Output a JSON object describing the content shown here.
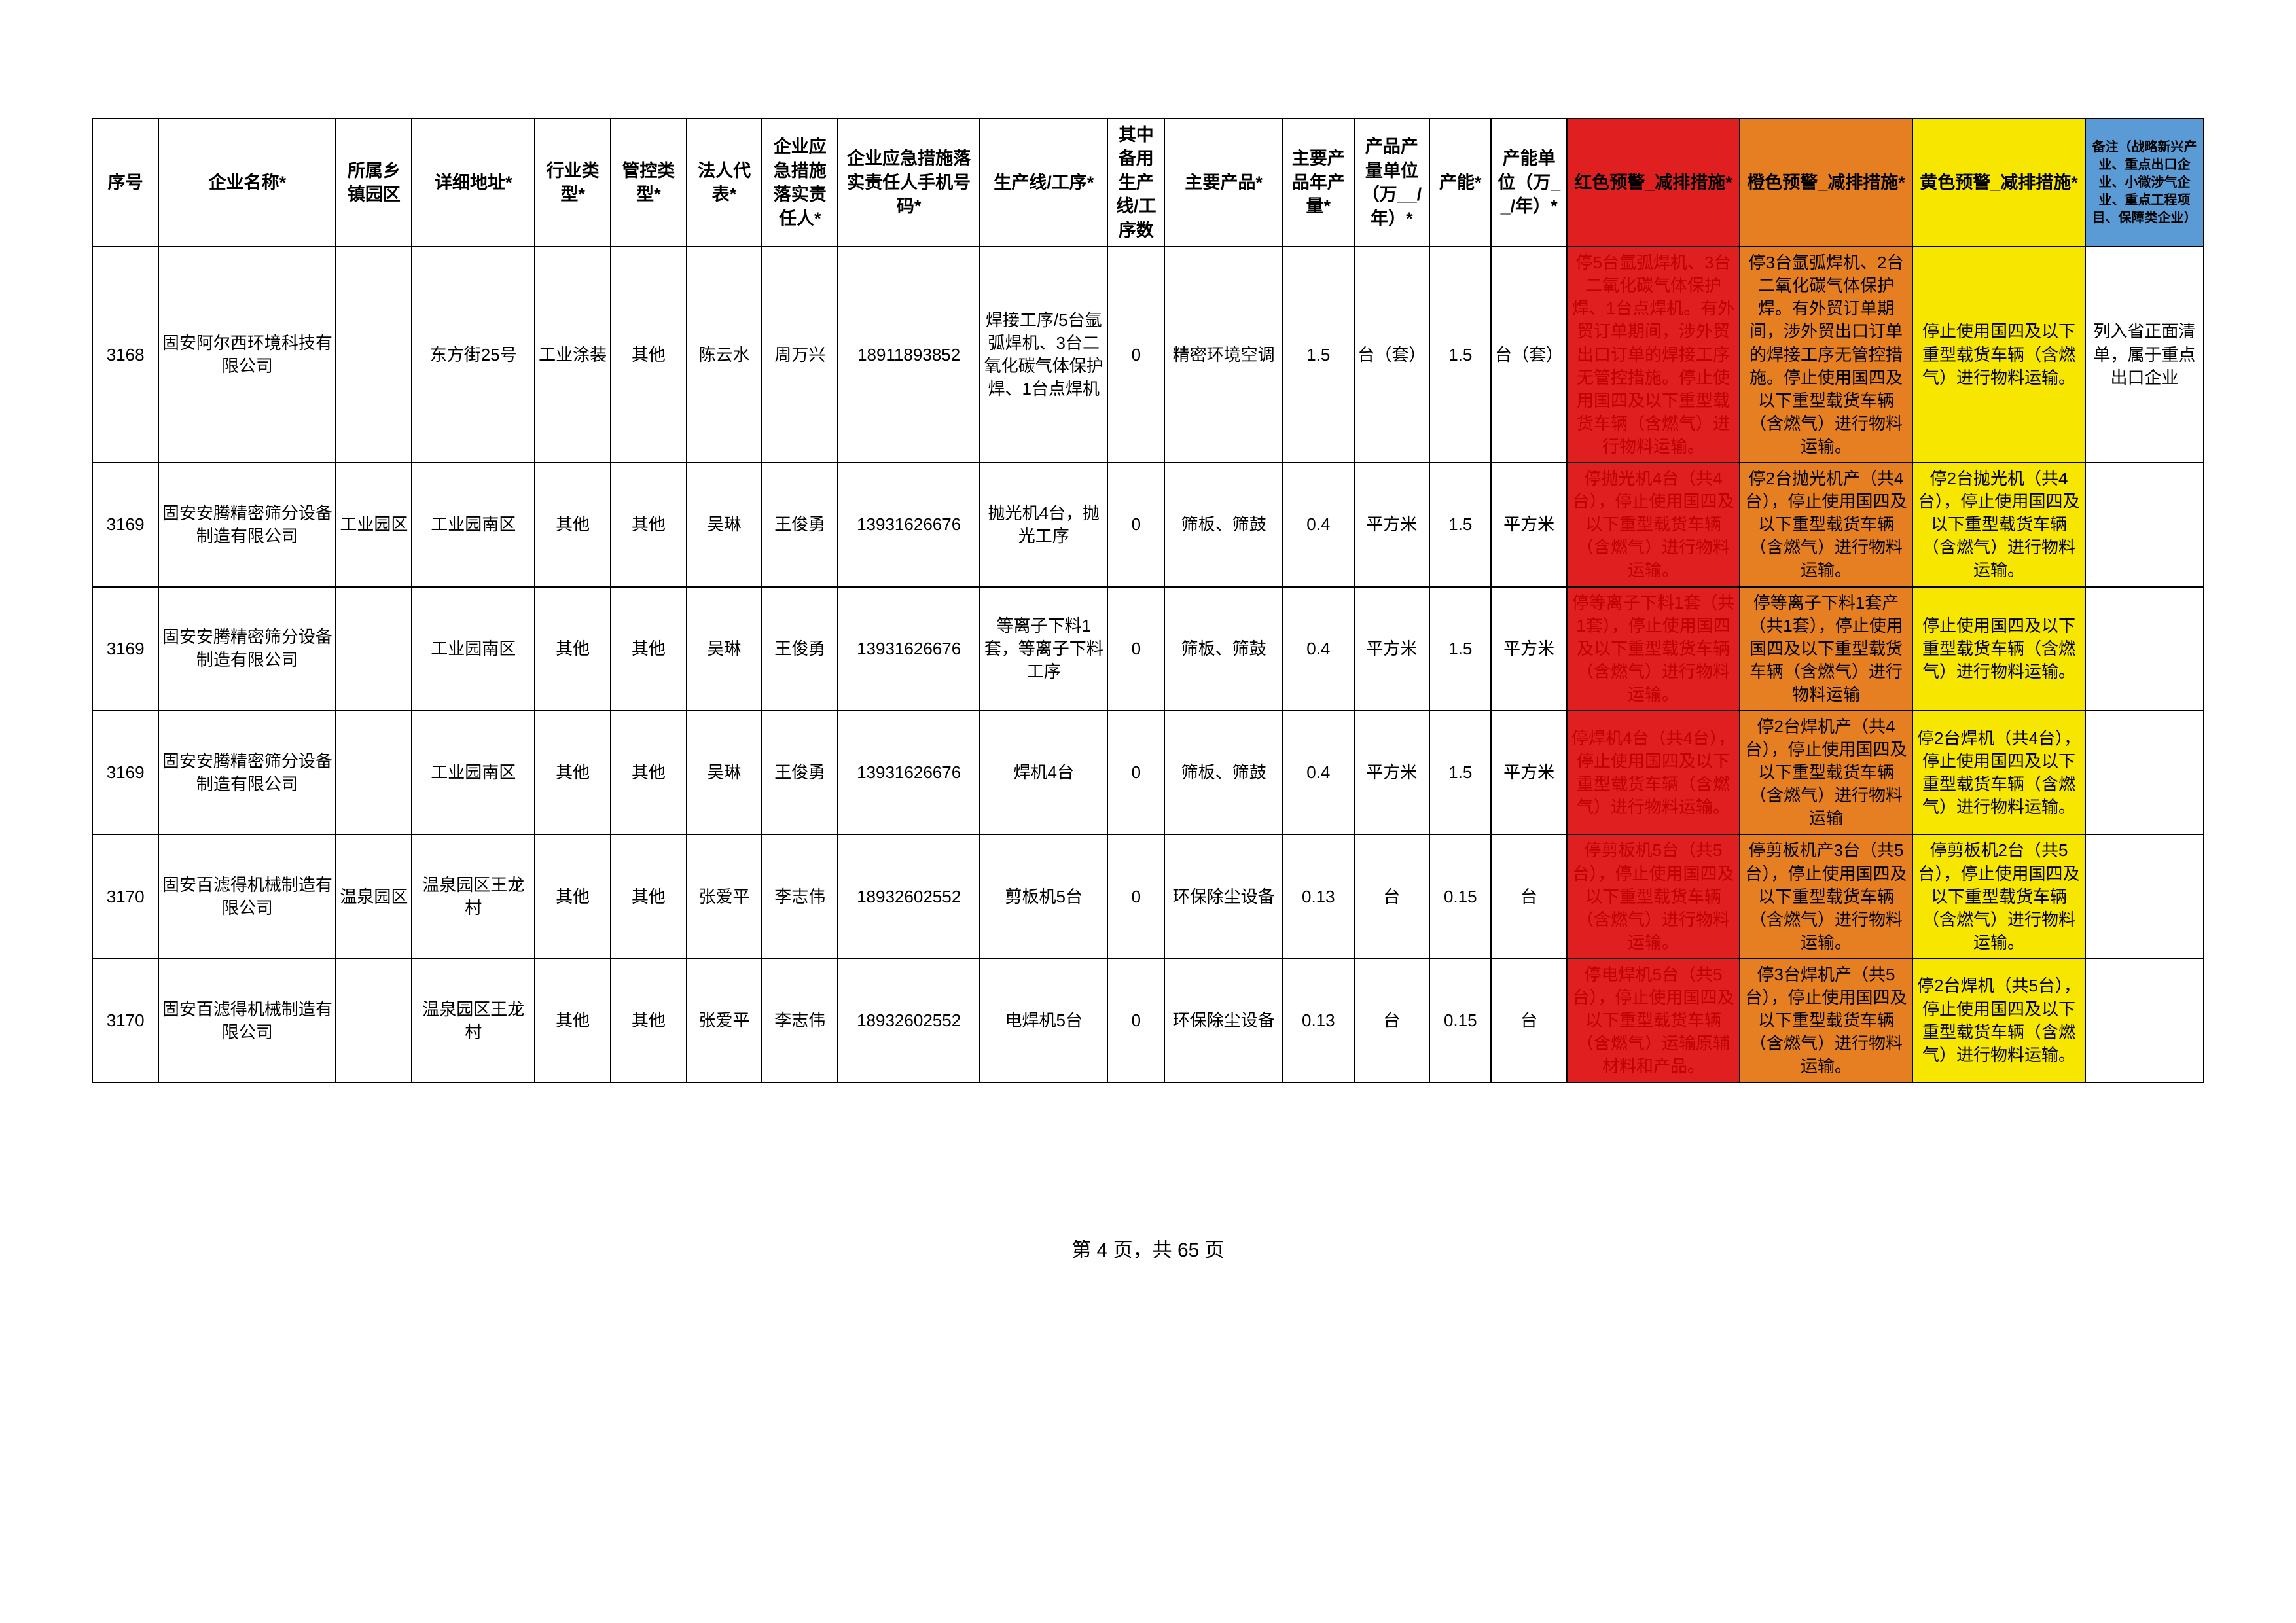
{
  "columns": [
    "序号",
    "企业名称*",
    "所属乡镇园区",
    "详细地址*",
    "行业类型*",
    "管控类型*",
    "法人代表*",
    "企业应急措施落实责任人*",
    "企业应急措施落实责任人手机号码*",
    "生产线/工序*",
    "其中备用生产线/工序数",
    "主要产品*",
    "主要产品年产量*",
    "产品产量单位（万__/年）*",
    "产能*",
    "产能单位（万__/年）*",
    "红色预警_减排措施*",
    "橙色预警_减排措施*",
    "黄色预警_减排措施*",
    "备注（战略新兴产业、重点出口企业、小微涉气企业、重点工程项目、保障类企业）"
  ],
  "header_colors": {
    "16": {
      "bg": "#e02020",
      "fg": "#000000"
    },
    "17": {
      "bg": "#e67e22",
      "fg": "#000000"
    },
    "18": {
      "bg": "#f6e600",
      "fg": "#000000"
    },
    "19": {
      "bg": "#5b9bd5",
      "fg": "#000000",
      "fs": "20px"
    }
  },
  "rows": [
    {
      "cells": [
        "3168",
        "固安阿尔西环境科技有限公司",
        "",
        "东方街25号",
        "工业涂装",
        "其他",
        "陈云水",
        "周万兴",
        "18911893852",
        "焊接工序/5台氩弧焊机、3台二氧化碳气体保护焊、1台点焊机",
        "0",
        "精密环境空调",
        "1.5",
        "台（套）",
        "1.5",
        "台（套）",
        "停5台氩弧焊机、3台二氧化碳气体保护焊、1台点焊机。有外贸订单期间，涉外贸出口订单的焊接工序无管控措施。停止使用国四及以下重型载货车辆（含燃气）进行物料运输。",
        "停3台氩弧焊机、2台二氧化碳气体保护焊。有外贸订单期间，涉外贸出口订单的焊接工序无管控措施。停止使用国四及以下重型载货车辆（含燃气）进行物料运输。",
        "停止使用国四及以下重型载货车辆（含燃气）进行物料运输。",
        "列入省正面清单，属于重点出口企业"
      ]
    },
    {
      "cells": [
        "3169",
        "固安安腾精密筛分设备制造有限公司",
        "工业园区",
        "工业园南区",
        "其他",
        "其他",
        "吴琳",
        "王俊勇",
        "13931626676",
        "抛光机4台，抛光工序",
        "0",
        "筛板、筛鼓",
        "0.4",
        "平方米",
        "1.5",
        "平方米",
        "停抛光机4台（共4台），停止使用国四及以下重型载货车辆（含燃气）进行物料运输。",
        "停2台抛光机产（共4台），停止使用国四及以下重型载货车辆（含燃气）进行物料运输。",
        "停2台抛光机（共4台），停止使用国四及以下重型载货车辆（含燃气）进行物料运输。",
        ""
      ]
    },
    {
      "cells": [
        "3169",
        "固安安腾精密筛分设备制造有限公司",
        "",
        "工业园南区",
        "其他",
        "其他",
        "吴琳",
        "王俊勇",
        "13931626676",
        "等离子下料1套，等离子下料工序",
        "0",
        "筛板、筛鼓",
        "0.4",
        "平方米",
        "1.5",
        "平方米",
        "停等离子下料1套（共1套），停止使用国四及以下重型载货车辆（含燃气）进行物料运输。",
        "停等离子下料1套产（共1套），停止使用国四及以下重型载货车辆（含燃气）进行物料运输",
        "停止使用国四及以下重型载货车辆（含燃气）进行物料运输。",
        ""
      ]
    },
    {
      "cells": [
        "3169",
        "固安安腾精密筛分设备制造有限公司",
        "",
        "工业园南区",
        "其他",
        "其他",
        "吴琳",
        "王俊勇",
        "13931626676",
        "焊机4台",
        "0",
        "筛板、筛鼓",
        "0.4",
        "平方米",
        "1.5",
        "平方米",
        "停焊机4台（共4台），停止使用国四及以下重型载货车辆（含燃气）进行物料运输。",
        "停2台焊机产（共4台），停止使用国四及以下重型载货车辆（含燃气）进行物料运输",
        "停2台焊机（共4台），停止使用国四及以下重型载货车辆（含燃气）进行物料运输。",
        ""
      ]
    },
    {
      "cells": [
        "3170",
        "固安百滤得机械制造有限公司",
        "温泉园区",
        "温泉园区王龙村",
        "其他",
        "其他",
        "张爱平",
        "李志伟",
        "18932602552",
        "剪板机5台",
        "0",
        "环保除尘设备",
        "0.13",
        "台",
        "0.15",
        "台",
        "停剪板机5台（共5台），停止使用国四及以下重型载货车辆（含燃气）进行物料运输。",
        "停剪板机产3台（共5台），停止使用国四及以下重型载货车辆（含燃气）进行物料运输。",
        "停剪板机2台（共5台），停止使用国四及以下重型载货车辆（含燃气）进行物料运输。",
        ""
      ]
    },
    {
      "cells": [
        "3170",
        "固安百滤得机械制造有限公司",
        "",
        "温泉园区王龙村",
        "其他",
        "其他",
        "张爱平",
        "李志伟",
        "18932602552",
        "电焊机5台",
        "0",
        "环保除尘设备",
        "0.13",
        "台",
        "0.15",
        "台",
        "停电焊机5台（共5台），停止使用国四及以下重型载货车辆（含燃气）运输原辅材料和产品。",
        "停3台焊机产（共5台），停止使用国四及以下重型载货车辆（含燃气）进行物料运输。",
        "停2台焊机（共5台），停止使用国四及以下重型载货车辆（含燃气）进行物料运输。",
        ""
      ]
    }
  ],
  "cell_colors": {
    "red": {
      "bg": "#e02020",
      "fg": "#c00000"
    },
    "orange": {
      "bg": "#e67e22",
      "fg": "#000000"
    },
    "yellow": {
      "bg": "#f6e600",
      "fg": "#000000"
    }
  },
  "footer": "第 4 页，共 65 页"
}
